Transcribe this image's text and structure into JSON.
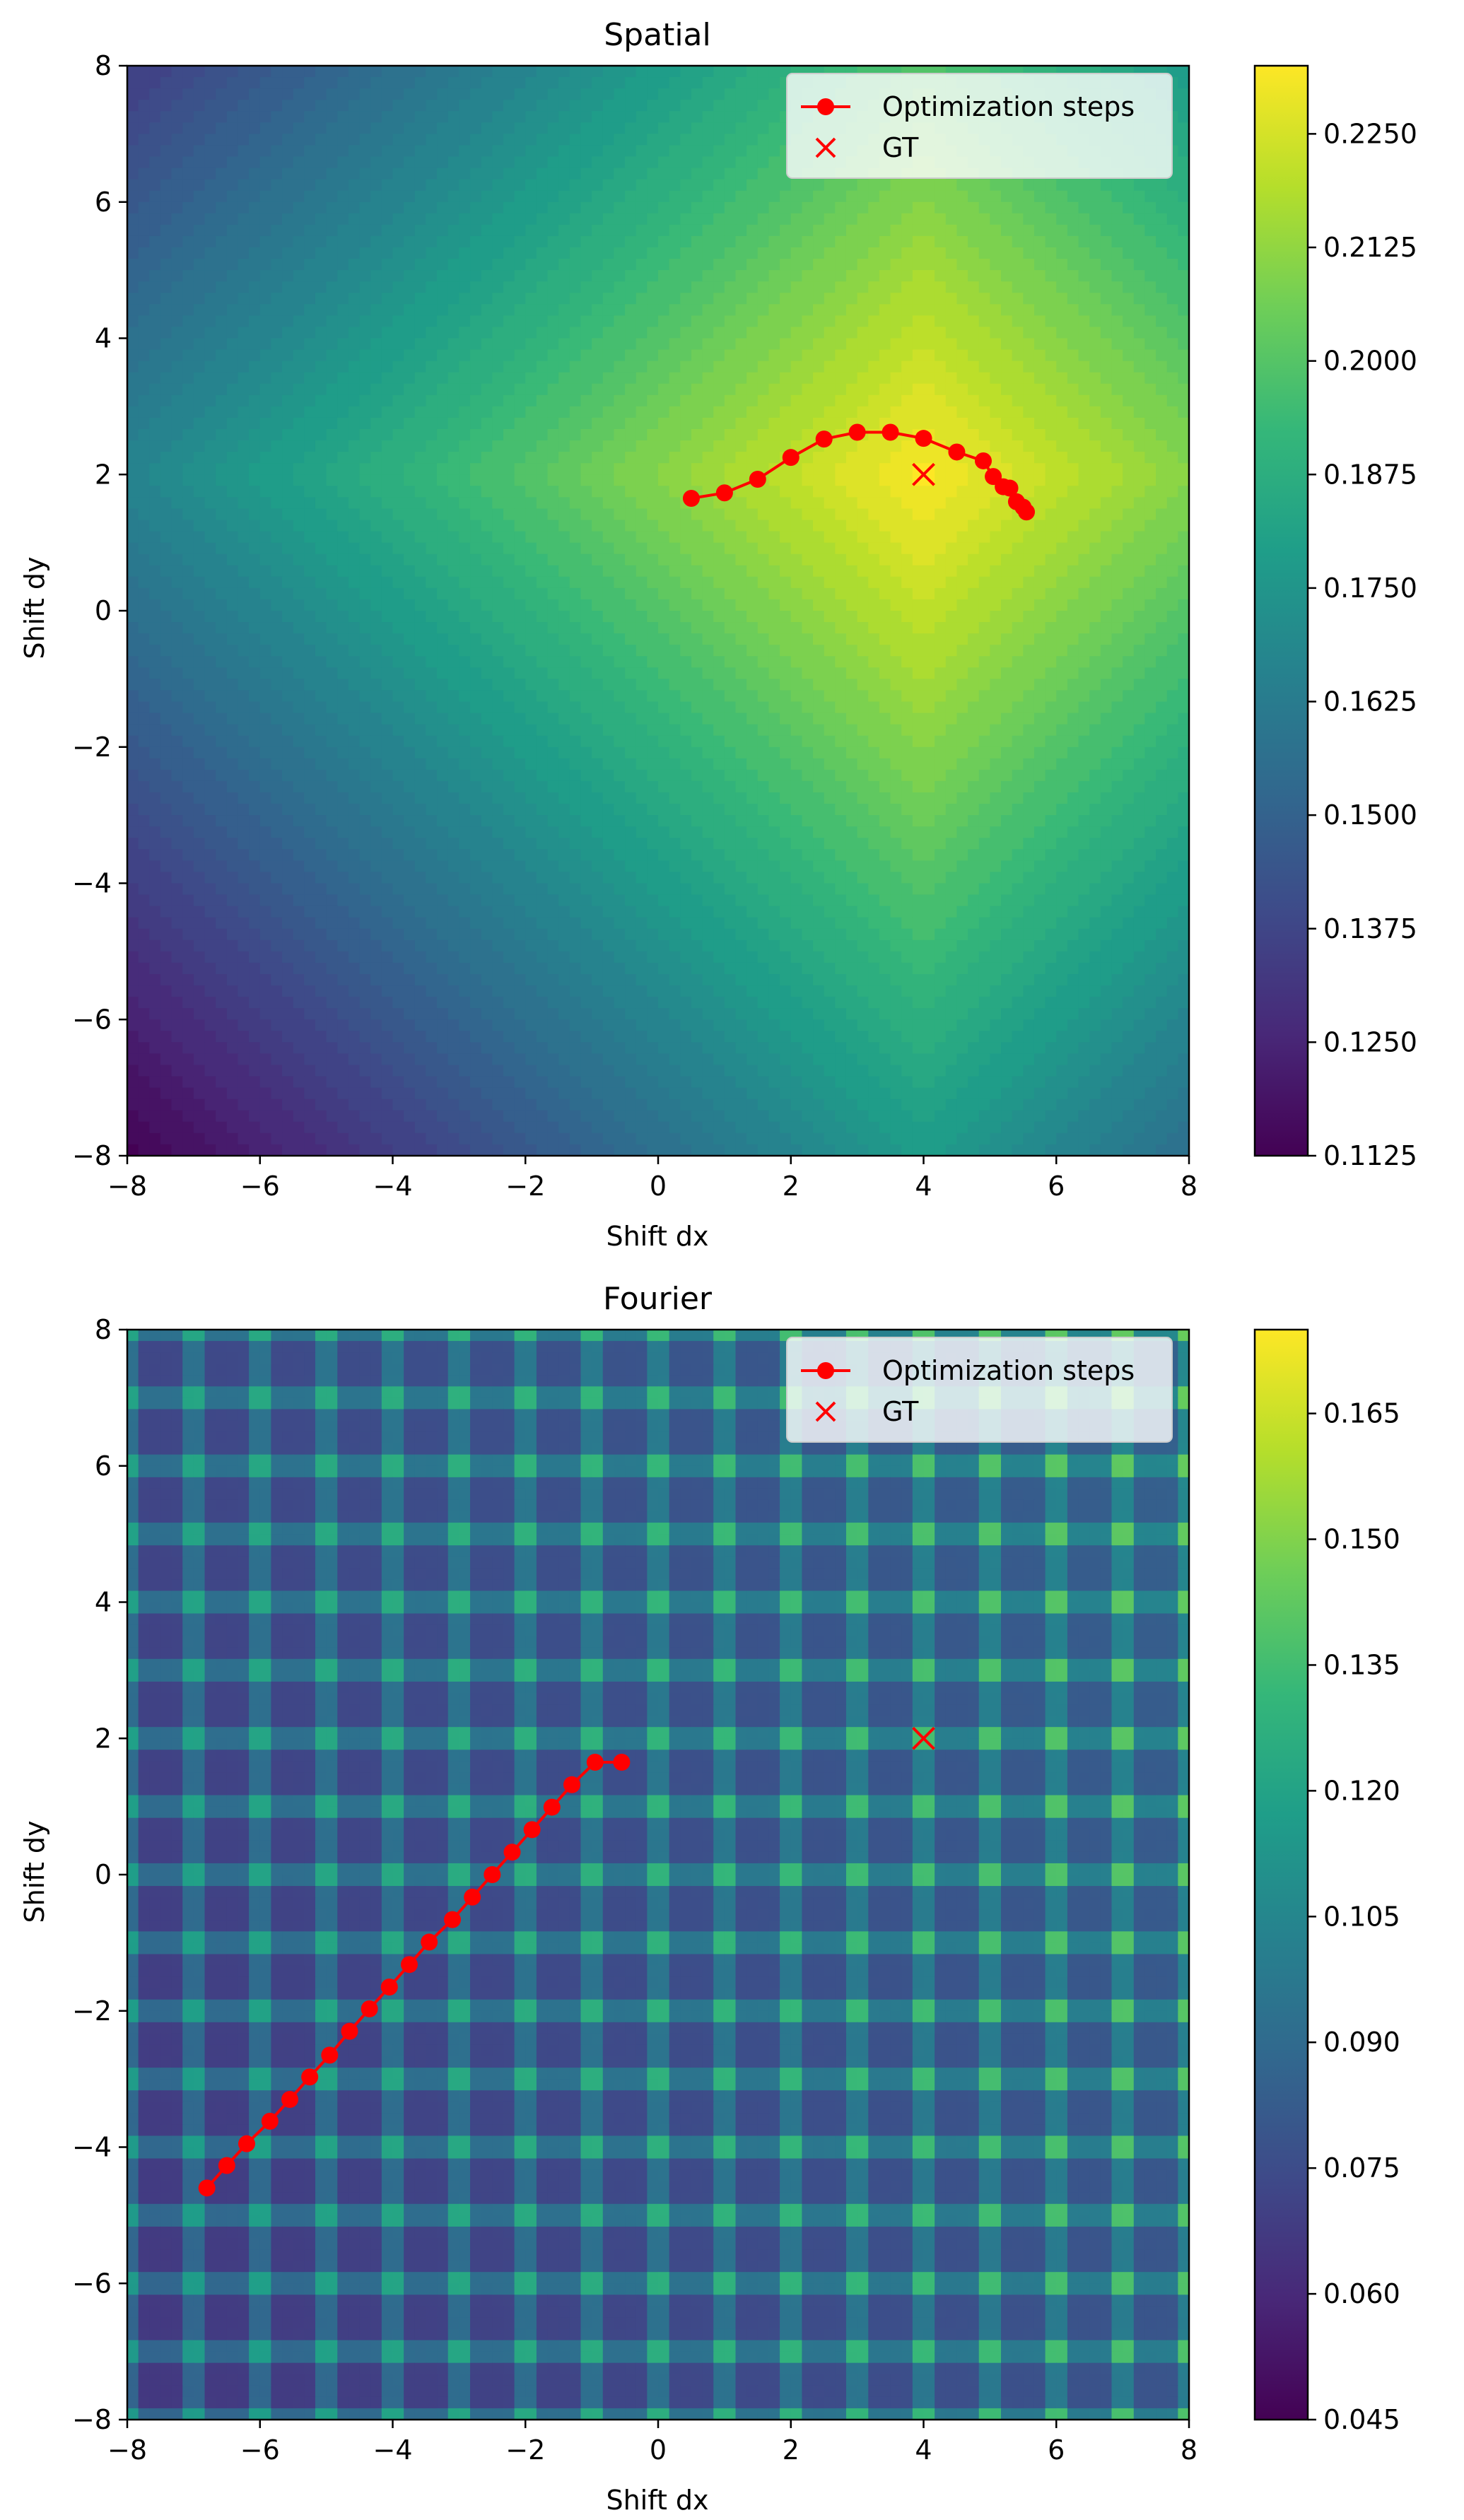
{
  "colors": {
    "path": "#ff0000",
    "gt": "#ff0000",
    "colormap": [
      "#440154",
      "#482878",
      "#3e4a89",
      "#31688e",
      "#26828e",
      "#1f9e89",
      "#35b779",
      "#6ece58",
      "#b5de2b",
      "#fde725"
    ]
  },
  "legend": {
    "steps_label": "Optimization steps",
    "gt_label": "GT"
  },
  "chart_data": [
    {
      "type": "heatmap",
      "title": "Spatial",
      "xlabel": "Shift dx",
      "ylabel": "Shift dy",
      "xlim": [
        -8,
        8
      ],
      "ylim": [
        -8,
        8
      ],
      "x_ticks": [
        "−8",
        "−6",
        "−4",
        "−2",
        "0",
        "2",
        "4",
        "6",
        "8"
      ],
      "y_ticks": [
        "−8",
        "−6",
        "−4",
        "−2",
        "0",
        "2",
        "4",
        "6",
        "8"
      ],
      "field": {
        "kind": "diamond",
        "center": [
          4,
          2
        ],
        "min": 0.1125,
        "max": 0.2325
      },
      "colorbar": {
        "vmin": 0.1125,
        "vmax": 0.2325,
        "ticks": [
          "0.1125",
          "0.1250",
          "0.1375",
          "0.1500",
          "0.1625",
          "0.1750",
          "0.1875",
          "0.2000",
          "0.2125",
          "0.2250"
        ]
      },
      "series": [
        {
          "name": "Optimization steps",
          "type": "line",
          "x": [
            0.5,
            1.0,
            1.5,
            2.0,
            2.5,
            3.0,
            3.5,
            4.0,
            4.5,
            4.9,
            5.05,
            5.2,
            5.3,
            5.4,
            5.5,
            5.55
          ],
          "y": [
            1.65,
            1.73,
            1.93,
            2.25,
            2.52,
            2.62,
            2.62,
            2.53,
            2.33,
            2.2,
            1.97,
            1.82,
            1.8,
            1.6,
            1.52,
            1.45
          ]
        },
        {
          "name": "GT",
          "type": "scatter",
          "x": [
            4
          ],
          "y": [
            2
          ]
        }
      ],
      "legend_position": "top-right"
    },
    {
      "type": "heatmap",
      "title": "Fourier",
      "xlabel": "Shift dx",
      "ylabel": "Shift dy",
      "xlim": [
        -8,
        8
      ],
      "ylim": [
        -8,
        8
      ],
      "x_ticks": [
        "−8",
        "−6",
        "−4",
        "−2",
        "0",
        "2",
        "4",
        "6",
        "8"
      ],
      "y_ticks": [
        "−8",
        "−6",
        "−4",
        "−2",
        "0",
        "2",
        "4",
        "6",
        "8"
      ],
      "field": {
        "kind": "lattice",
        "period": 1,
        "min": 0.045,
        "max": 0.175
      },
      "colorbar": {
        "vmin": 0.045,
        "vmax": 0.175,
        "ticks": [
          "0.045",
          "0.060",
          "0.075",
          "0.090",
          "0.105",
          "0.120",
          "0.135",
          "0.150",
          "0.165"
        ]
      },
      "series": [
        {
          "name": "Optimization steps",
          "type": "line",
          "x": [
            -6.8,
            -6.5,
            -6.2,
            -5.85,
            -5.55,
            -5.25,
            -4.95,
            -4.65,
            -4.35,
            -4.05,
            -3.75,
            -3.45,
            -3.1,
            -2.8,
            -2.5,
            -2.2,
            -1.9,
            -1.6,
            -1.3,
            -0.95,
            -0.55
          ],
          "y": [
            -4.6,
            -4.27,
            -3.95,
            -3.62,
            -3.3,
            -2.97,
            -2.65,
            -2.3,
            -1.97,
            -1.65,
            -1.32,
            -0.99,
            -0.66,
            -0.33,
            0.0,
            0.33,
            0.66,
            0.99,
            1.32,
            1.65,
            1.65
          ]
        },
        {
          "name": "GT",
          "type": "scatter",
          "x": [
            4
          ],
          "y": [
            2
          ]
        }
      ],
      "legend_position": "top-right"
    }
  ]
}
